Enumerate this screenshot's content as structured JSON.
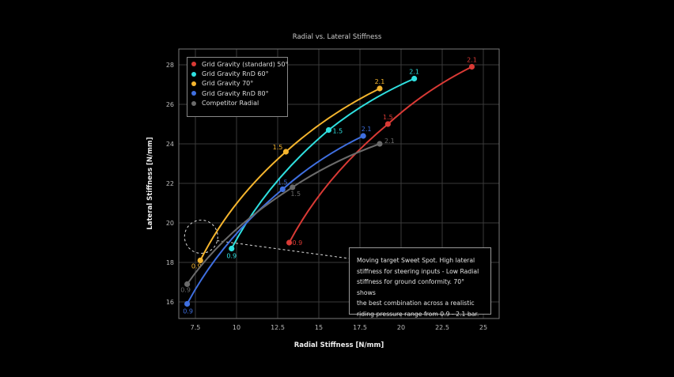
{
  "chart_data": {
    "type": "line",
    "title": "Radial vs. Lateral Stiffness",
    "xlabel": "Radial Stiffness [N/mm]",
    "ylabel": "Lateral Stiffness [N/mm]",
    "xlim": [
      6.5,
      26.0
    ],
    "ylim": [
      15.2,
      28.8
    ],
    "xticks": [
      7.5,
      10,
      12.5,
      15,
      17.5,
      20,
      22.5,
      25
    ],
    "xtick_labels": [
      "7.5",
      "10",
      "12.5",
      "15",
      "17.5",
      "20",
      "22.5",
      "25"
    ],
    "yticks": [
      16,
      18,
      20,
      22,
      24,
      26,
      28
    ],
    "ytick_labels": [
      "16",
      "18",
      "20",
      "22",
      "24",
      "26",
      "28"
    ],
    "grid": true,
    "legend_position": "upper left",
    "point_labels": [
      "0.9",
      "1.5",
      "2.1"
    ],
    "series": [
      {
        "name": "Grid Gravity (standard) 50°",
        "color": "#d93a35",
        "x": [
          13.2,
          19.2,
          24.3
        ],
        "y": [
          19.0,
          25.0,
          27.9
        ]
      },
      {
        "name": "Grid Gravity RnD 60°",
        "color": "#2fe0e0",
        "x": [
          9.7,
          15.6,
          20.8
        ],
        "y": [
          18.7,
          24.7,
          27.3
        ]
      },
      {
        "name": "Grid Gravity 70°",
        "color": "#f5b52e",
        "x": [
          7.8,
          13.0,
          18.7
        ],
        "y": [
          18.1,
          23.6,
          26.8
        ]
      },
      {
        "name": "Grid Gravity RnD 80°",
        "color": "#3f6fe0",
        "x": [
          7.0,
          12.8,
          17.7
        ],
        "y": [
          15.9,
          21.7,
          24.4
        ]
      },
      {
        "name": "Competitor Radial",
        "color": "#6b6b6b",
        "x": [
          7.0,
          13.4,
          18.7
        ],
        "y": [
          16.9,
          21.8,
          24.0
        ]
      }
    ],
    "annotation": {
      "text": "Moving target Sweet Spot. High lateral stiffness for steering inputs - Low Radial stiffness for ground conformity. 70° shows the best combination across a realistic riding pressure range from 0.9 - 2.1 bar.",
      "target_circle": {
        "x": 7.85,
        "y": 19.3
      }
    }
  },
  "legend": {
    "items": [
      {
        "label": "Grid Gravity (standard) 50°",
        "color": "#d93a35"
      },
      {
        "label": "Grid Gravity RnD 60°",
        "color": "#2fe0e0"
      },
      {
        "label": "Grid Gravity 70°",
        "color": "#f5b52e"
      },
      {
        "label": "Grid Gravity RnD 80°",
        "color": "#3f6fe0"
      },
      {
        "label": "Competitor Radial",
        "color": "#6b6b6b"
      }
    ]
  },
  "note": {
    "lines": [
      "Moving target Sweet Spot. High lateral",
      "stiffness for steering inputs - Low Radial",
      "stiffness for ground conformity. 70° shows",
      "the best combination across a realistic",
      "riding pressure range from 0.9 - 2.1 bar."
    ]
  }
}
